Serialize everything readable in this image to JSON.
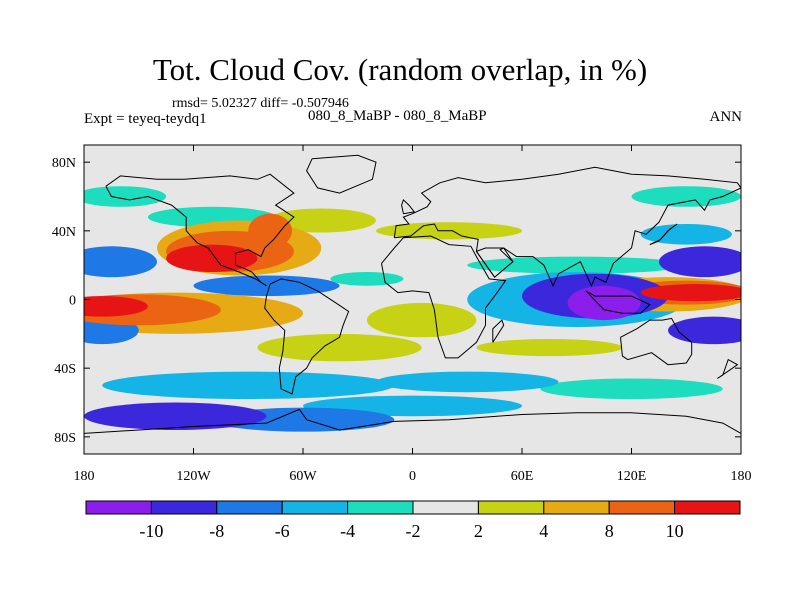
{
  "chart_data": {
    "type": "contour-map",
    "title": "Tot. Cloud Cov. (random overlap, in %)",
    "stats": "rmsd= 5.02327 diff= -0.507946",
    "experiment": "Expt = teyeq-teydq1",
    "case": "080_8_MaBP - 080_8_MaBP",
    "season": "ANN",
    "xlim": [
      -180,
      180
    ],
    "ylim": [
      -90,
      90
    ],
    "x_ticks": [
      {
        "value": -180,
        "label": "180"
      },
      {
        "value": -120,
        "label": "120W"
      },
      {
        "value": -60,
        "label": "60W"
      },
      {
        "value": 0,
        "label": "0"
      },
      {
        "value": 60,
        "label": "60E"
      },
      {
        "value": 120,
        "label": "120E"
      },
      {
        "value": 180,
        "label": "180"
      }
    ],
    "y_ticks": [
      {
        "value": 80,
        "label": "80N"
      },
      {
        "value": 40,
        "label": "40N"
      },
      {
        "value": 0,
        "label": "0"
      },
      {
        "value": -40,
        "label": "40S"
      },
      {
        "value": -80,
        "label": "80S"
      }
    ],
    "levels": [
      -10,
      -8,
      -6,
      -4,
      -2,
      2,
      4,
      8,
      10
    ],
    "level_labels": [
      "-10",
      "-8",
      "-6",
      "-4",
      "-2",
      "2",
      "4",
      "8",
      "10"
    ],
    "colors": [
      "#8c1eeb",
      "#3c28dc",
      "#1e78e6",
      "#14b4e6",
      "#1edcbe",
      "#e6e6e6",
      "#c8d214",
      "#e6aa14",
      "#eb6414",
      "#e61414"
    ],
    "features": [
      {
        "kind": "blob",
        "lon": 155,
        "lat": 4,
        "rlon": 30,
        "rlat": 5,
        "value": 12
      },
      {
        "kind": "blob",
        "lon": 150,
        "lat": 4,
        "rlon": 36,
        "rlat": 7,
        "value": 9
      },
      {
        "kind": "blob",
        "lon": 140,
        "lat": 3,
        "rlon": 45,
        "rlat": 10,
        "value": 6
      },
      {
        "kind": "blob",
        "lon": -170,
        "lat": -4,
        "rlon": 25,
        "rlat": 6,
        "value": 12
      },
      {
        "kind": "blob",
        "lon": -150,
        "lat": -6,
        "rlon": 45,
        "rlat": 9,
        "value": 9
      },
      {
        "kind": "blob",
        "lon": -130,
        "lat": -8,
        "rlon": 70,
        "rlat": 12,
        "value": 6
      },
      {
        "kind": "blob",
        "lon": -110,
        "lat": 24,
        "rlon": 25,
        "rlat": 8,
        "value": 12
      },
      {
        "kind": "blob",
        "lon": -100,
        "lat": 28,
        "rlon": 35,
        "rlat": 12,
        "value": 9
      },
      {
        "kind": "blob",
        "lon": -95,
        "lat": 30,
        "rlon": 45,
        "rlat": 16,
        "value": 5
      },
      {
        "kind": "blob",
        "lon": -78,
        "lat": 40,
        "rlon": 12,
        "rlat": 10,
        "value": 9
      },
      {
        "kind": "blob",
        "lon": -50,
        "lat": 46,
        "rlon": 30,
        "rlat": 7,
        "value": 3
      },
      {
        "kind": "blob",
        "lon": 20,
        "lat": 40,
        "rlon": 40,
        "rlat": 5,
        "value": 3
      },
      {
        "kind": "blob",
        "lon": 5,
        "lat": -12,
        "rlon": 30,
        "rlat": 10,
        "value": 3
      },
      {
        "kind": "blob",
        "lon": -40,
        "lat": -28,
        "rlon": 45,
        "rlat": 8,
        "value": 3
      },
      {
        "kind": "blob",
        "lon": 75,
        "lat": -28,
        "rlon": 40,
        "rlat": 5,
        "value": 3
      },
      {
        "kind": "blob",
        "lon": 105,
        "lat": -2,
        "rlon": 20,
        "rlat": 10,
        "value": -11
      },
      {
        "kind": "blob",
        "lon": 100,
        "lat": 2,
        "rlon": 40,
        "rlat": 13,
        "value": -9
      },
      {
        "kind": "blob",
        "lon": 90,
        "lat": 0,
        "rlon": 60,
        "rlat": 16,
        "value": -5
      },
      {
        "kind": "blob",
        "lon": 160,
        "lat": 22,
        "rlon": 25,
        "rlat": 9,
        "value": -9
      },
      {
        "kind": "blob",
        "lon": 165,
        "lat": -18,
        "rlon": 25,
        "rlat": 8,
        "value": -9
      },
      {
        "kind": "blob",
        "lon": -165,
        "lat": 22,
        "rlon": 25,
        "rlat": 9,
        "value": -7
      },
      {
        "kind": "blob",
        "lon": -170,
        "lat": -18,
        "rlon": 20,
        "rlat": 8,
        "value": -7
      },
      {
        "kind": "blob",
        "lon": -80,
        "lat": 8,
        "rlon": 40,
        "rlat": 6,
        "value": -8
      },
      {
        "kind": "blob",
        "lon": -130,
        "lat": -68,
        "rlon": 50,
        "rlat": 8,
        "value": -9
      },
      {
        "kind": "blob",
        "lon": -60,
        "lat": -70,
        "rlon": 50,
        "rlat": 7,
        "value": -7
      },
      {
        "kind": "blob",
        "lon": 0,
        "lat": -62,
        "rlon": 60,
        "rlat": 6,
        "value": -5
      },
      {
        "kind": "blob",
        "lon": -90,
        "lat": -50,
        "rlon": 80,
        "rlat": 8,
        "value": -5
      },
      {
        "kind": "blob",
        "lon": 30,
        "lat": -48,
        "rlon": 50,
        "rlat": 6,
        "value": -5
      },
      {
        "kind": "blob",
        "lon": 120,
        "lat": -52,
        "rlon": 50,
        "rlat": 6,
        "value": -4
      },
      {
        "kind": "blob",
        "lon": -110,
        "lat": 48,
        "rlon": 35,
        "rlat": 6,
        "value": -4
      },
      {
        "kind": "blob",
        "lon": 90,
        "lat": 20,
        "rlon": 60,
        "rlat": 5,
        "value": -4
      },
      {
        "kind": "blob",
        "lon": 150,
        "lat": 60,
        "rlon": 30,
        "rlat": 6,
        "value": -4
      },
      {
        "kind": "blob",
        "lon": -160,
        "lat": 60,
        "rlon": 25,
        "rlat": 6,
        "value": -4
      },
      {
        "kind": "blob",
        "lon": 150,
        "lat": 38,
        "rlon": 25,
        "rlat": 6,
        "value": -5
      },
      {
        "kind": "blob",
        "lon": -25,
        "lat": 12,
        "rlon": 20,
        "rlat": 4,
        "value": -4
      },
      {
        "kind": "blob",
        "lon": 60,
        "lat": -2,
        "rlon": 18,
        "rlat": 5,
        "value": -4
      }
    ],
    "land_outlines": [
      {
        "name": "north-america",
        "points": [
          [
            -168,
            66
          ],
          [
            -160,
            72
          ],
          [
            -140,
            70
          ],
          [
            -125,
            70
          ],
          [
            -100,
            72
          ],
          [
            -85,
            70
          ],
          [
            -78,
            73
          ],
          [
            -65,
            62
          ],
          [
            -75,
            55
          ],
          [
            -65,
            48
          ],
          [
            -70,
            43
          ],
          [
            -76,
            35
          ],
          [
            -81,
            30
          ],
          [
            -83,
            25
          ],
          [
            -90,
            29
          ],
          [
            -97,
            27
          ],
          [
            -97,
            20
          ],
          [
            -92,
            18
          ],
          [
            -88,
            16
          ],
          [
            -83,
            10
          ],
          [
            -80,
            8
          ],
          [
            -86,
            12
          ],
          [
            -95,
            16
          ],
          [
            -105,
            20
          ],
          [
            -112,
            30
          ],
          [
            -118,
            33
          ],
          [
            -124,
            40
          ],
          [
            -124,
            48
          ],
          [
            -132,
            55
          ],
          [
            -145,
            60
          ],
          [
            -155,
            58
          ],
          [
            -165,
            60
          ],
          [
            -168,
            66
          ]
        ]
      },
      {
        "name": "greenland",
        "points": [
          [
            -55,
            82
          ],
          [
            -30,
            84
          ],
          [
            -20,
            80
          ],
          [
            -22,
            70
          ],
          [
            -40,
            62
          ],
          [
            -52,
            65
          ],
          [
            -58,
            75
          ],
          [
            -55,
            82
          ]
        ]
      },
      {
        "name": "south-america",
        "points": [
          [
            -78,
            9
          ],
          [
            -72,
            12
          ],
          [
            -62,
            10
          ],
          [
            -52,
            5
          ],
          [
            -42,
            -2
          ],
          [
            -35,
            -7
          ],
          [
            -38,
            -15
          ],
          [
            -40,
            -22
          ],
          [
            -48,
            -27
          ],
          [
            -55,
            -34
          ],
          [
            -58,
            -40
          ],
          [
            -64,
            -45
          ],
          [
            -66,
            -55
          ],
          [
            -72,
            -52
          ],
          [
            -73,
            -40
          ],
          [
            -71,
            -30
          ],
          [
            -70,
            -18
          ],
          [
            -76,
            -12
          ],
          [
            -81,
            -5
          ],
          [
            -80,
            2
          ],
          [
            -78,
            9
          ]
        ]
      },
      {
        "name": "africa",
        "points": [
          [
            -17,
            21
          ],
          [
            -10,
            30
          ],
          [
            -5,
            36
          ],
          [
            10,
            37
          ],
          [
            20,
            32
          ],
          [
            32,
            31
          ],
          [
            35,
            25
          ],
          [
            42,
            12
          ],
          [
            51,
            11
          ],
          [
            45,
            2
          ],
          [
            40,
            -5
          ],
          [
            40,
            -15
          ],
          [
            35,
            -25
          ],
          [
            25,
            -34
          ],
          [
            18,
            -34
          ],
          [
            14,
            -22
          ],
          [
            12,
            -6
          ],
          [
            9,
            4
          ],
          [
            0,
            5
          ],
          [
            -8,
            4
          ],
          [
            -15,
            10
          ],
          [
            -17,
            21
          ]
        ]
      },
      {
        "name": "eurasia",
        "points": [
          [
            -10,
            36
          ],
          [
            -9,
            43
          ],
          [
            -2,
            44
          ],
          [
            -5,
            48
          ],
          [
            0,
            50
          ],
          [
            8,
            54
          ],
          [
            10,
            57
          ],
          [
            5,
            62
          ],
          [
            15,
            68
          ],
          [
            25,
            71
          ],
          [
            40,
            68
          ],
          [
            60,
            70
          ],
          [
            80,
            73
          ],
          [
            100,
            77
          ],
          [
            120,
            73
          ],
          [
            140,
            72
          ],
          [
            160,
            70
          ],
          [
            178,
            68
          ],
          [
            180,
            65
          ],
          [
            170,
            60
          ],
          [
            163,
            58
          ],
          [
            160,
            52
          ],
          [
            155,
            58
          ],
          [
            140,
            55
          ],
          [
            135,
            45
          ],
          [
            128,
            38
          ],
          [
            122,
            40
          ],
          [
            120,
            30
          ],
          [
            110,
            21
          ],
          [
            106,
            10
          ],
          [
            100,
            13
          ],
          [
            98,
            8
          ],
          [
            92,
            22
          ],
          [
            80,
            15
          ],
          [
            77,
            8
          ],
          [
            72,
            20
          ],
          [
            66,
            25
          ],
          [
            57,
            25
          ],
          [
            50,
            30
          ],
          [
            48,
            29
          ],
          [
            55,
            22
          ],
          [
            45,
            13
          ],
          [
            35,
            28
          ],
          [
            36,
            35
          ],
          [
            27,
            37
          ],
          [
            22,
            40
          ],
          [
            14,
            40
          ],
          [
            12,
            44
          ],
          [
            6,
            43
          ],
          [
            -1,
            37
          ],
          [
            -10,
            36
          ]
        ]
      },
      {
        "name": "arabia",
        "points": [
          [
            35,
            28
          ],
          [
            45,
            13
          ],
          [
            55,
            22
          ],
          [
            50,
            30
          ],
          [
            40,
            30
          ],
          [
            35,
            28
          ]
        ]
      },
      {
        "name": "australia",
        "points": [
          [
            114,
            -22
          ],
          [
            123,
            -17
          ],
          [
            130,
            -12
          ],
          [
            137,
            -12
          ],
          [
            142,
            -11
          ],
          [
            146,
            -19
          ],
          [
            153,
            -25
          ],
          [
            153,
            -32
          ],
          [
            150,
            -37
          ],
          [
            140,
            -38
          ],
          [
            131,
            -31
          ],
          [
            118,
            -35
          ],
          [
            115,
            -33
          ],
          [
            114,
            -22
          ]
        ]
      },
      {
        "name": "indonesia",
        "points": [
          [
            95,
            5
          ],
          [
            105,
            -6
          ],
          [
            115,
            -8
          ],
          [
            125,
            -8
          ],
          [
            130,
            -3
          ],
          [
            120,
            2
          ],
          [
            110,
            2
          ],
          [
            100,
            2
          ],
          [
            95,
            5
          ]
        ]
      },
      {
        "name": "japan",
        "points": [
          [
            130,
            32
          ],
          [
            136,
            35
          ],
          [
            141,
            41
          ],
          [
            145,
            44
          ],
          [
            140,
            40
          ],
          [
            135,
            34
          ],
          [
            130,
            32
          ]
        ]
      },
      {
        "name": "madagascar",
        "points": [
          [
            44,
            -25
          ],
          [
            50,
            -15
          ],
          [
            49,
            -12
          ],
          [
            44,
            -17
          ],
          [
            44,
            -25
          ]
        ]
      },
      {
        "name": "new-zealand",
        "points": [
          [
            167,
            -46
          ],
          [
            174,
            -41
          ],
          [
            178,
            -38
          ],
          [
            173,
            -35
          ],
          [
            170,
            -44
          ],
          [
            167,
            -46
          ]
        ]
      },
      {
        "name": "uk",
        "points": [
          [
            -5,
            50
          ],
          [
            1,
            51
          ],
          [
            -2,
            55
          ],
          [
            -5,
            58
          ],
          [
            -6,
            55
          ],
          [
            -5,
            50
          ]
        ]
      },
      {
        "name": "antarctica",
        "points": [
          [
            -180,
            -78
          ],
          [
            -150,
            -76
          ],
          [
            -120,
            -74
          ],
          [
            -80,
            -72
          ],
          [
            -62,
            -64
          ],
          [
            -58,
            -70
          ],
          [
            -40,
            -76
          ],
          [
            -10,
            -71
          ],
          [
            20,
            -70
          ],
          [
            60,
            -67
          ],
          [
            90,
            -66
          ],
          [
            120,
            -66
          ],
          [
            150,
            -68
          ],
          [
            170,
            -72
          ],
          [
            180,
            -78
          ]
        ]
      }
    ]
  }
}
